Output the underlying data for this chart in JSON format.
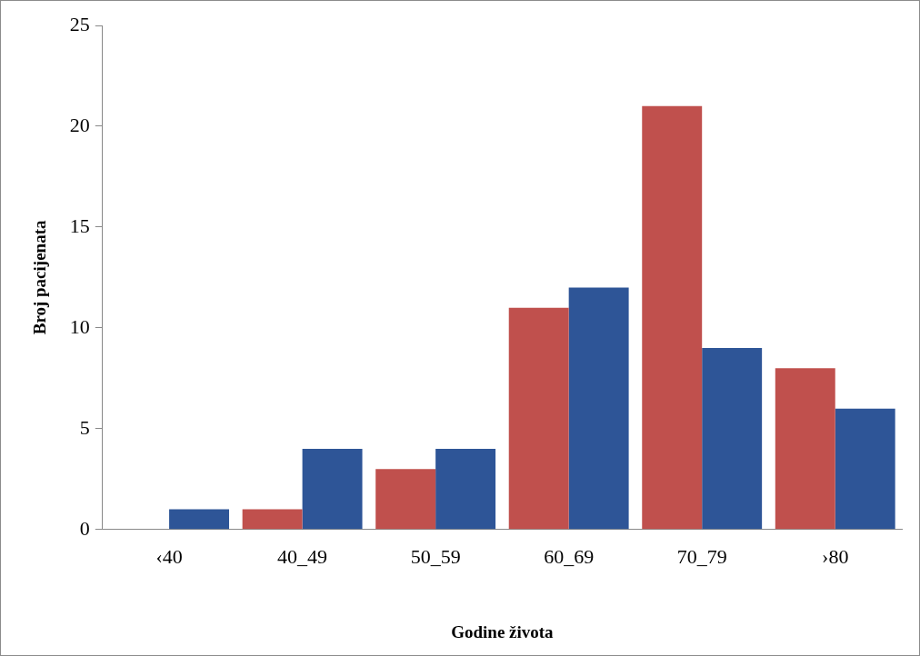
{
  "chart_data": {
    "type": "bar",
    "xlabel": "Godine života",
    "ylabel": "Broj pacijenata",
    "categories": [
      "‹40",
      "40_49",
      "50_59",
      "60_69",
      "70_79",
      "›80"
    ],
    "series": [
      {
        "color": "#c0504d",
        "values": [
          0,
          1,
          3,
          11,
          21,
          8
        ]
      },
      {
        "color": "#2e5597",
        "values": [
          1,
          4,
          4,
          12,
          9,
          6
        ]
      }
    ],
    "ylim": [
      0,
      25
    ],
    "yticks": [
      0,
      5,
      10,
      15,
      20,
      25
    ],
    "grid": false,
    "legend": false
  }
}
